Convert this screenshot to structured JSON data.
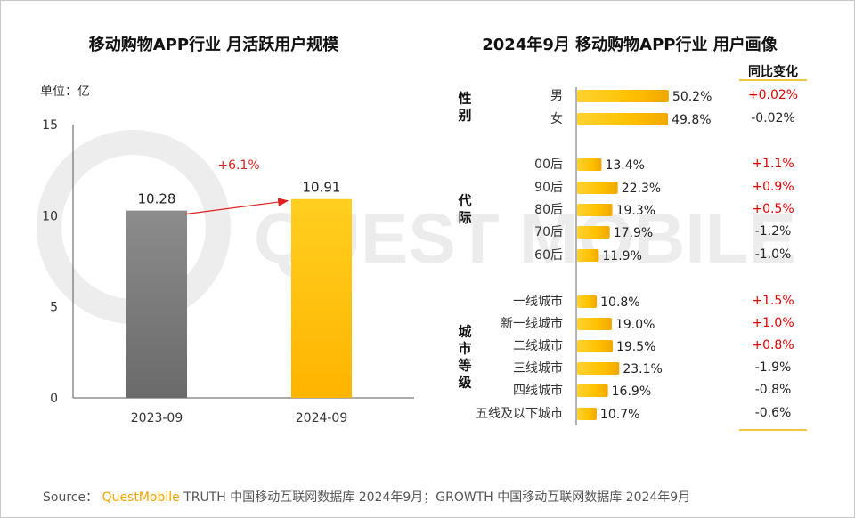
{
  "chart_data": [
    {
      "type": "bar",
      "title": "移动购物APP行业 月活跃用户规模",
      "unit_label": "单位：亿",
      "categories": [
        "2023-09",
        "2024-09"
      ],
      "values": [
        10.28,
        10.91
      ],
      "ylim": [
        0,
        15
      ],
      "yticks": [
        "0",
        "5",
        "10",
        "15"
      ],
      "ytick_values": [
        0,
        5,
        10,
        15
      ],
      "value_labels": [
        "10.28",
        "10.91"
      ],
      "growth_label": "+6.1%",
      "colors": [
        "#7f7f7f",
        "#ffc000"
      ]
    },
    {
      "type": "bar",
      "orientation": "horizontal",
      "title": "2024年9月 移动购物APP行业 用户画像",
      "change_header": "同比变化",
      "groups": [
        {
          "name": "性别",
          "name_chars": [
            "性",
            "别"
          ],
          "items": [
            {
              "label": "男",
              "value": 50.2,
              "value_label": "50.2%",
              "change": "+0.02%",
              "positive": true
            },
            {
              "label": "女",
              "value": 49.8,
              "value_label": "49.8%",
              "change": "-0.02%",
              "positive": false
            }
          ]
        },
        {
          "name": "代际",
          "name_chars": [
            "代",
            "际"
          ],
          "items": [
            {
              "label": "00后",
              "value": 13.4,
              "value_label": "13.4%",
              "change": "+1.1%",
              "positive": true
            },
            {
              "label": "90后",
              "value": 22.3,
              "value_label": "22.3%",
              "change": "+0.9%",
              "positive": true
            },
            {
              "label": "80后",
              "value": 19.3,
              "value_label": "19.3%",
              "change": "+0.5%",
              "positive": true
            },
            {
              "label": "70后",
              "value": 17.9,
              "value_label": "17.9%",
              "change": "-1.2%",
              "positive": false
            },
            {
              "label": "60后",
              "value": 11.9,
              "value_label": "11.9%",
              "change": "-1.0%",
              "positive": false
            }
          ]
        },
        {
          "name": "城市等级",
          "name_chars": [
            "城",
            "市",
            "等",
            "级"
          ],
          "items": [
            {
              "label": "一线城市",
              "value": 10.8,
              "value_label": "10.8%",
              "change": "+1.5%",
              "positive": true
            },
            {
              "label": "新一线城市",
              "value": 19.0,
              "value_label": "19.0%",
              "change": "+1.0%",
              "positive": true
            },
            {
              "label": "二线城市",
              "value": 19.5,
              "value_label": "19.5%",
              "change": "+0.8%",
              "positive": true
            },
            {
              "label": "三线城市",
              "value": 23.1,
              "value_label": "23.1%",
              "change": "-1.9%",
              "positive": false
            },
            {
              "label": "四线城市",
              "value": 16.9,
              "value_label": "16.9%",
              "change": "-0.8%",
              "positive": false
            },
            {
              "label": "五线及以下城市",
              "value": 10.7,
              "value_label": "10.7%",
              "change": "-0.6%",
              "positive": false
            }
          ]
        }
      ]
    }
  ],
  "watermark": "QUEST MOBILE",
  "source": {
    "prefix": "Source：",
    "brand": "QuestMobile",
    "text": "TRUTH 中国移动互联网数据库 2024年9月；GROWTH 中国移动互联网数据库 2024年9月"
  },
  "colors": {
    "positive": "#e00000",
    "negative": "#222222",
    "bar_gold": "#ffc000",
    "bar_gray": "#7f7f7f",
    "arrow": "#e02020"
  }
}
